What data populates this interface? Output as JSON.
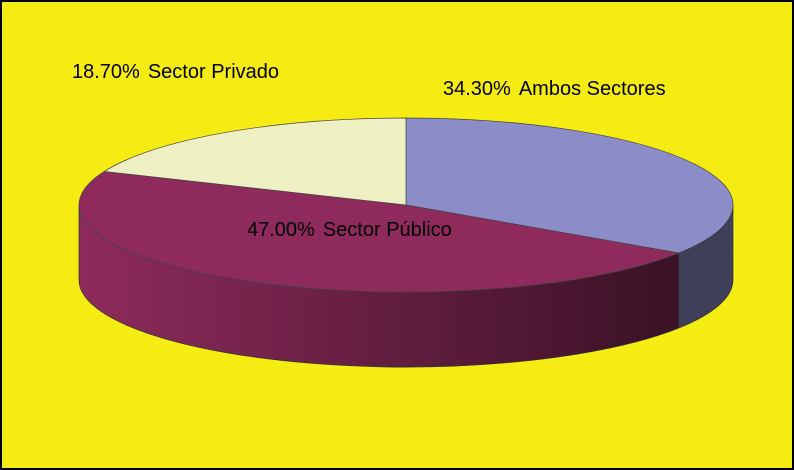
{
  "chart_data": {
    "type": "pie3d",
    "categories": [
      "Ambos Sectores",
      "Sector Público",
      "Sector Privado"
    ],
    "values": [
      34.3,
      47.0,
      18.7
    ],
    "value_labels": [
      "34.30%",
      "47.00%",
      "18.70%"
    ],
    "colors": [
      "#8c8cc8",
      "#8e2b5c",
      "#efefc4"
    ]
  }
}
